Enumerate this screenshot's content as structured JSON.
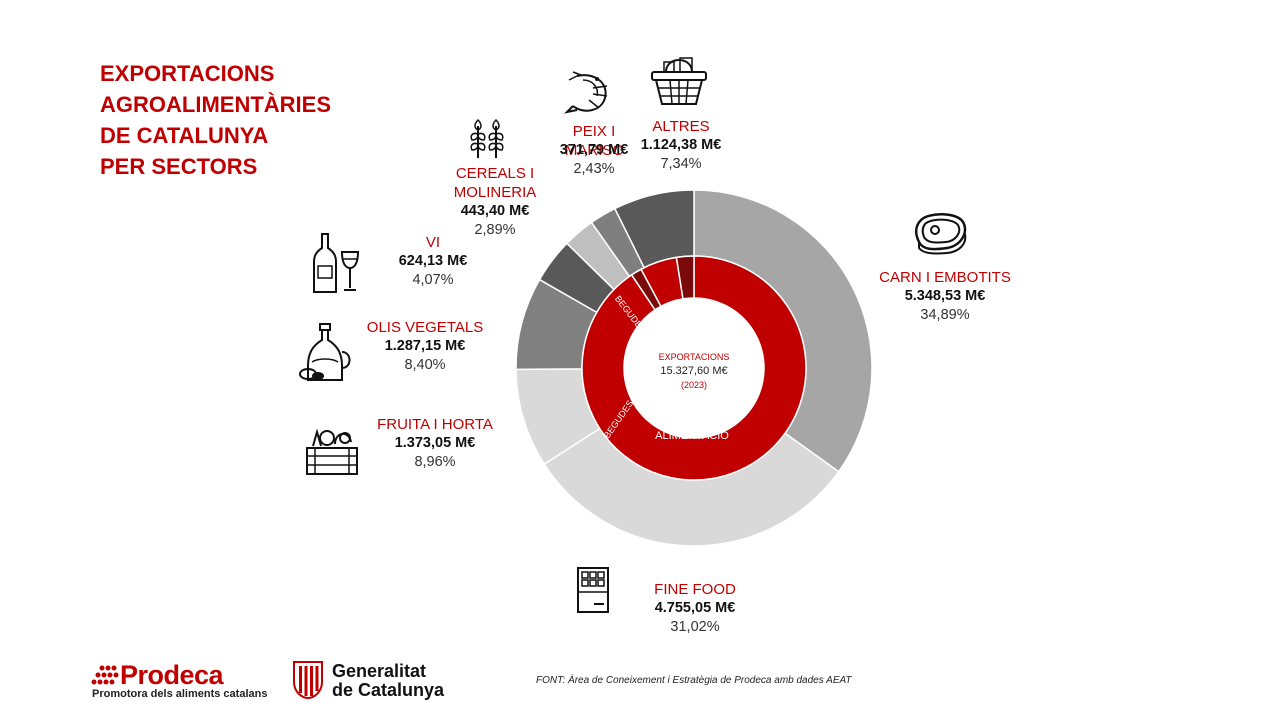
{
  "title": [
    "EXPORTACIONS",
    "AGROALIMENTÀRIES",
    "DE CATALUNYA",
    "PER SECTORS"
  ],
  "center": {
    "line1": "EXPORTACIONS",
    "line2": "15.327,60 M€",
    "line3": "(2023)"
  },
  "colors": {
    "accent": "#c00000",
    "inner_dark": "#7a0a0a"
  },
  "chart_data": {
    "type": "donut",
    "total_label": "15.327,60 M€",
    "outer_series": [
      {
        "name": "CARN I EMBOTITS",
        "value_label": "5.348,53 M€",
        "pct_label": "34,89%",
        "value": 5348.53,
        "percent": 34.89,
        "color": "#a6a6a6",
        "icon": "steak-icon"
      },
      {
        "name": "FINE FOOD",
        "value_label": "4.755,05 M€",
        "pct_label": "31,02%",
        "value": 4755.05,
        "percent": 31.02,
        "color": "#d9d9d9",
        "icon": "chocolate-bar-icon"
      },
      {
        "name": "FRUITA I HORTA",
        "value_label": "1.373,05 M€",
        "pct_label": "8,96%",
        "value": 1373.05,
        "percent": 8.96,
        "color": "#d9d9d9",
        "icon": "vegetable-crate-icon"
      },
      {
        "name": "OLIS VEGETALS",
        "value_label": "1.287,15 M€",
        "pct_label": "8,40%",
        "value": 1287.15,
        "percent": 8.4,
        "color": "#808080",
        "icon": "oil-bottle-icon"
      },
      {
        "name": "VI",
        "value_label": "624,13 M€",
        "pct_label": "4,07%",
        "value": 624.13,
        "percent": 4.07,
        "color": "#595959",
        "icon": "wine-bottle-icon"
      },
      {
        "name": "CEREALS I MOLINERIA",
        "name_lines": [
          "CEREALS I",
          "MOLINERIA"
        ],
        "value_label": "443,40 M€",
        "pct_label": "2,89%",
        "value": 443.4,
        "percent": 2.89,
        "color": "#bfbfbf",
        "icon": "wheat-icon"
      },
      {
        "name": "PEIX I MARISC",
        "name_lines": [
          "PEIX I",
          "MARISC"
        ],
        "value_label": "371,79 M€",
        "pct_label": "2,43%",
        "value": 371.79,
        "percent": 2.43,
        "color": "#7f7f7f",
        "icon": "shrimp-icon"
      },
      {
        "name": "ALTRES",
        "value_label": "1.124,38 M€",
        "pct_label": "7,34%",
        "value": 1124.38,
        "percent": 7.34,
        "color": "#595959",
        "icon": "basket-icon"
      }
    ],
    "inner_series": [
      {
        "name": "ALIMENTACIÓ",
        "value": 13888.22,
        "color": "#c00000"
      },
      {
        "name": "BEGUDES",
        "value": 239.1,
        "color": "#7a0a0a"
      },
      {
        "name": "ALIMENTACIÓ",
        "value": 815.17,
        "color": "#c00000"
      },
      {
        "name": "BEGUDES",
        "value": 385.03,
        "color": "#7a0a0a"
      }
    ],
    "inner_labels": [
      "ALIMENTACIÓ",
      "BEGUDES",
      "BEGUDES"
    ]
  },
  "footer": {
    "prodeca_name": "Prodeca",
    "prodeca_sub": "Promotora dels aliments catalans",
    "gen_line1": "Generalitat",
    "gen_line2": "de Catalunya",
    "source": "FONT:  Àrea de Coneixement i Estratègia de Prodeca amb dades AEAT"
  }
}
